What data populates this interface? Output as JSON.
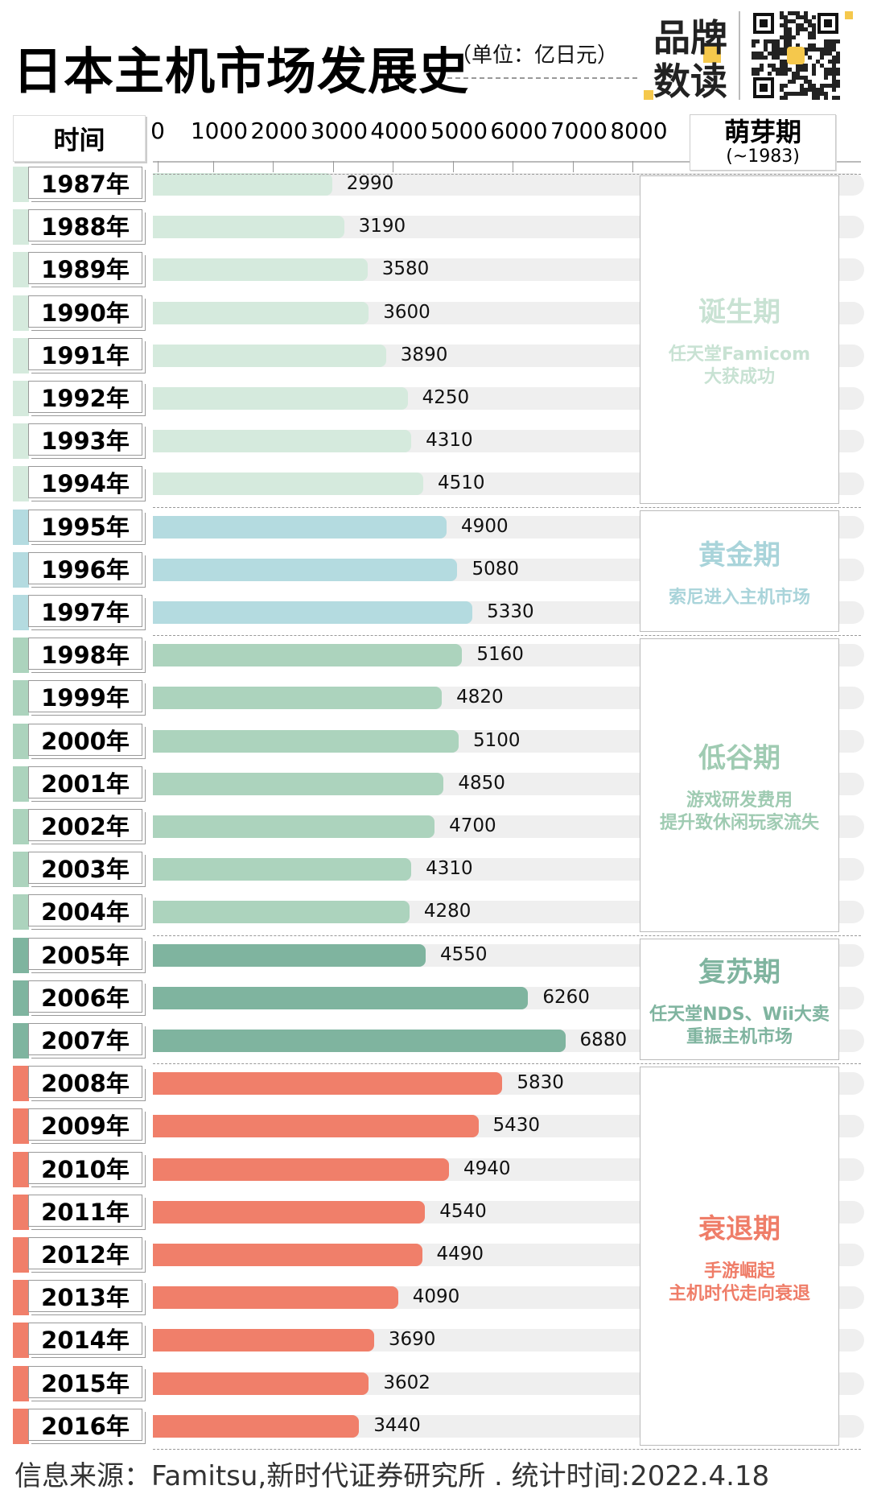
{
  "header": {
    "title": "日本主机市场发展史",
    "unit": "（单位：亿日元）",
    "brand": "品牌数读"
  },
  "chart_data": {
    "type": "bar",
    "orientation": "horizontal",
    "title": "日本主机市场发展史",
    "unit": "亿日元",
    "xlim": [
      0,
      8000
    ],
    "xticks": [
      0,
      1000,
      2000,
      3000,
      4000,
      5000,
      6000,
      7000,
      8000
    ],
    "category_header": "时间",
    "categories": [
      "1987年",
      "1988年",
      "1989年",
      "1990年",
      "1991年",
      "1992年",
      "1993年",
      "1994年",
      "1995年",
      "1996年",
      "1997年",
      "1998年",
      "1999年",
      "2000年",
      "2001年",
      "2002年",
      "2003年",
      "2004年",
      "2005年",
      "2006年",
      "2007年",
      "2008年",
      "2009年",
      "2010年",
      "2011年",
      "2012年",
      "2013年",
      "2014年",
      "2015年",
      "2016年"
    ],
    "values": [
      2990,
      3190,
      3580,
      3600,
      3890,
      4250,
      4310,
      4510,
      4900,
      5080,
      5330,
      5160,
      4820,
      5100,
      4850,
      4700,
      4310,
      4280,
      4550,
      6260,
      6880,
      5830,
      5430,
      4940,
      4540,
      4490,
      4090,
      3690,
      3602,
      3440
    ],
    "header_period": {
      "name": "萌芽期",
      "range": "(~1983)"
    },
    "periods": [
      {
        "name": "诞生期",
        "desc": [
          "任天堂Famicom",
          "大获成功"
        ],
        "start": 0,
        "end": 7,
        "color": "#d5eadd",
        "text_color": "#c8e2d3"
      },
      {
        "name": "黄金期",
        "desc": [
          "索尼进入主机市场"
        ],
        "start": 8,
        "end": 10,
        "color": "#b4dbe0",
        "text_color": "#a9d4da"
      },
      {
        "name": "低谷期",
        "desc": [
          "游戏研发费用",
          "提升致休闲玩家流失"
        ],
        "start": 11,
        "end": 17,
        "color": "#acd3bd",
        "text_color": "#9fcbb2"
      },
      {
        "name": "复苏期",
        "desc": [
          "任天堂NDS、Wii大卖",
          "重振主机市场"
        ],
        "start": 18,
        "end": 20,
        "color": "#7fb49f",
        "text_color": "#7fb49f"
      },
      {
        "name": "衰退期",
        "desc": [
          "手游崛起",
          "主机时代走向衰退"
        ],
        "start": 21,
        "end": 29,
        "color": "#f07f6a",
        "text_color": "#ef7d68"
      }
    ]
  },
  "footer": "信息来源：Famitsu,新时代证券研究所 . 统计时间:2022.4.18"
}
